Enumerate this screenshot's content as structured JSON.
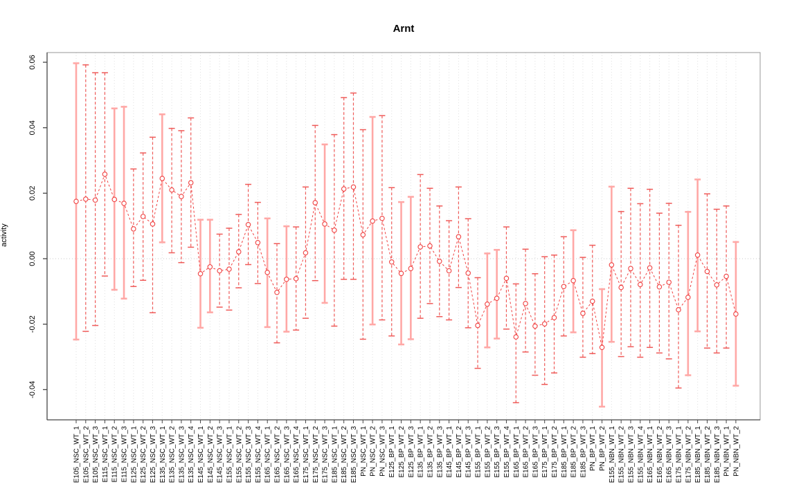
{
  "title": "Arnt",
  "chart_data": {
    "type": "scatter",
    "title": "Arnt",
    "xlabel": "",
    "ylabel": "activity",
    "ylim": [
      -0.0492,
      0.063
    ],
    "yticks": [
      0.06,
      0.04,
      0.02,
      0.0,
      -0.02,
      -0.04
    ],
    "grid": "vertical dotted gridline per category; horizontal dotted line at zero only",
    "legend_position": "none",
    "marker": "open-circle",
    "line_style": "dashed",
    "error_bars": true,
    "points": [
      {
        "label": "E105_NSC_WT_1",
        "value": 0.0175,
        "lo": -0.0247,
        "hi": 0.0597,
        "style": "solid"
      },
      {
        "label": "E105_NSC_WT_2",
        "value": 0.0182,
        "lo": -0.0222,
        "hi": 0.0592,
        "style": "dashed"
      },
      {
        "label": "E105_NSC_WT_3",
        "value": 0.0179,
        "lo": -0.0204,
        "hi": 0.0568,
        "style": "dashed"
      },
      {
        "label": "E115_NSC_WT_1",
        "value": 0.0258,
        "lo": -0.0053,
        "hi": 0.0568,
        "style": "dashed"
      },
      {
        "label": "E115_NSC_WT_2",
        "value": 0.0181,
        "lo": -0.0095,
        "hi": 0.0459,
        "style": "solid"
      },
      {
        "label": "E115_NSC_WT_3",
        "value": 0.0169,
        "lo": -0.0122,
        "hi": 0.0464,
        "style": "solid"
      },
      {
        "label": "E125_NSC_WT_1",
        "value": 0.0091,
        "lo": -0.0085,
        "hi": 0.0274,
        "style": "dashed"
      },
      {
        "label": "E125_NSC_WT_2",
        "value": 0.0129,
        "lo": -0.0066,
        "hi": 0.0323,
        "style": "dashed"
      },
      {
        "label": "E125_NSC_WT_3",
        "value": 0.0106,
        "lo": -0.0165,
        "hi": 0.0371,
        "style": "dashed"
      },
      {
        "label": "E135_NSC_WT_1",
        "value": 0.0245,
        "lo": 0.005,
        "hi": 0.0441,
        "style": "solid"
      },
      {
        "label": "E135_NSC_WT_2",
        "value": 0.021,
        "lo": 0.0018,
        "hi": 0.0398,
        "style": "dashed"
      },
      {
        "label": "E135_NSC_WT_3",
        "value": 0.019,
        "lo": -0.0012,
        "hi": 0.0391,
        "style": "dashed"
      },
      {
        "label": "E135_NSC_WT_4",
        "value": 0.0232,
        "lo": 0.0035,
        "hi": 0.043,
        "style": "dashed"
      },
      {
        "label": "E145_NSC_WT_1",
        "value": -0.0046,
        "lo": -0.0211,
        "hi": 0.0119,
        "style": "solid"
      },
      {
        "label": "E145_NSC_WT_2",
        "value": -0.0025,
        "lo": -0.0164,
        "hi": 0.0119,
        "style": "solid"
      },
      {
        "label": "E145_NSC_WT_3",
        "value": -0.0037,
        "lo": -0.0148,
        "hi": 0.0075,
        "style": "dashed"
      },
      {
        "label": "E155_NSC_WT_1",
        "value": -0.0032,
        "lo": -0.0157,
        "hi": 0.0093,
        "style": "dashed"
      },
      {
        "label": "E155_NSC_WT_2",
        "value": 0.0021,
        "lo": -0.0089,
        "hi": 0.0135,
        "style": "dashed"
      },
      {
        "label": "E155_NSC_WT_3",
        "value": 0.0104,
        "lo": -0.0018,
        "hi": 0.0227,
        "style": "dashed"
      },
      {
        "label": "E155_NSC_WT_4",
        "value": 0.0049,
        "lo": -0.0076,
        "hi": 0.0172,
        "style": "dashed"
      },
      {
        "label": "E165_NSC_WT_1",
        "value": -0.0042,
        "lo": -0.0209,
        "hi": 0.0123,
        "style": "solid"
      },
      {
        "label": "E165_NSC_WT_2",
        "value": -0.0103,
        "lo": -0.0257,
        "hi": 0.0046,
        "style": "dashed"
      },
      {
        "label": "E165_NSC_WT_3",
        "value": -0.0063,
        "lo": -0.0223,
        "hi": 0.0099,
        "style": "solid"
      },
      {
        "label": "E165_NSC_WT_4",
        "value": -0.0061,
        "lo": -0.0218,
        "hi": 0.0097,
        "style": "dashed"
      },
      {
        "label": "E175_NSC_WT_1",
        "value": 0.0018,
        "lo": -0.0182,
        "hi": 0.0219,
        "style": "dashed"
      },
      {
        "label": "E175_NSC_WT_2",
        "value": 0.0171,
        "lo": -0.0067,
        "hi": 0.0407,
        "style": "dashed"
      },
      {
        "label": "E175_NSC_WT_3",
        "value": 0.0106,
        "lo": -0.0135,
        "hi": 0.0349,
        "style": "solid"
      },
      {
        "label": "E185_NSC_WT_1",
        "value": 0.0087,
        "lo": -0.0206,
        "hi": 0.0379,
        "style": "dashed"
      },
      {
        "label": "E185_NSC_WT_2",
        "value": 0.0213,
        "lo": -0.0063,
        "hi": 0.0492,
        "style": "dashed"
      },
      {
        "label": "E185_NSC_WT_3",
        "value": 0.0219,
        "lo": -0.0063,
        "hi": 0.0506,
        "style": "dashed"
      },
      {
        "label": "PN_NSC_WT_1",
        "value": 0.0073,
        "lo": -0.0246,
        "hi": 0.0394,
        "style": "dashed"
      },
      {
        "label": "PN_NSC_WT_2",
        "value": 0.0115,
        "lo": -0.0201,
        "hi": 0.0433,
        "style": "solid"
      },
      {
        "label": "PN_NSC_WT_3",
        "value": 0.0123,
        "lo": -0.0187,
        "hi": 0.0437,
        "style": "dashed"
      },
      {
        "label": "E125_BP_WT_1",
        "value": -0.001,
        "lo": -0.0236,
        "hi": 0.0217,
        "style": "dashed"
      },
      {
        "label": "E125_BP_WT_2",
        "value": -0.0045,
        "lo": -0.0262,
        "hi": 0.0173,
        "style": "solid"
      },
      {
        "label": "E125_BP_WT_3",
        "value": -0.003,
        "lo": -0.0246,
        "hi": 0.0189,
        "style": "solid"
      },
      {
        "label": "E135_BP_WT_1",
        "value": 0.0036,
        "lo": -0.0182,
        "hi": 0.0257,
        "style": "dashed"
      },
      {
        "label": "E135_BP_WT_2",
        "value": 0.0039,
        "lo": -0.0137,
        "hi": 0.0215,
        "style": "dashed"
      },
      {
        "label": "E135_BP_WT_3",
        "value": -0.0008,
        "lo": -0.0177,
        "hi": 0.0161,
        "style": "dashed"
      },
      {
        "label": "E145_BP_WT_1",
        "value": -0.0037,
        "lo": -0.0187,
        "hi": 0.0116,
        "style": "dashed"
      },
      {
        "label": "E145_BP_WT_2",
        "value": 0.0067,
        "lo": -0.0088,
        "hi": 0.0219,
        "style": "dashed"
      },
      {
        "label": "E145_BP_WT_3",
        "value": -0.0044,
        "lo": -0.0211,
        "hi": 0.0122,
        "style": "dashed"
      },
      {
        "label": "E155_BP_WT_1",
        "value": -0.0204,
        "lo": -0.0335,
        "hi": -0.0058,
        "style": "dashed"
      },
      {
        "label": "E155_BP_WT_2",
        "value": -0.0139,
        "lo": -0.0271,
        "hi": 0.0016,
        "style": "solid"
      },
      {
        "label": "E155_BP_WT_3",
        "value": -0.0121,
        "lo": -0.0244,
        "hi": 0.0027,
        "style": "solid"
      },
      {
        "label": "E155_BP_WT_4",
        "value": -0.006,
        "lo": -0.0215,
        "hi": 0.0097,
        "style": "dashed"
      },
      {
        "label": "E165_BP_WT_1",
        "value": -0.0239,
        "lo": -0.044,
        "hi": -0.0077,
        "style": "dashed"
      },
      {
        "label": "E165_BP_WT_2",
        "value": -0.0137,
        "lo": -0.0285,
        "hi": 0.0029,
        "style": "dashed"
      },
      {
        "label": "E165_BP_WT_3",
        "value": -0.0206,
        "lo": -0.0356,
        "hi": -0.0046,
        "style": "dashed"
      },
      {
        "label": "E175_BP_WT_1",
        "value": -0.0199,
        "lo": -0.0384,
        "hi": 0.0006,
        "style": "dashed"
      },
      {
        "label": "E175_BP_WT_2",
        "value": -0.018,
        "lo": -0.0349,
        "hi": 0.0011,
        "style": "dashed"
      },
      {
        "label": "E185_BP_WT_1",
        "value": -0.0085,
        "lo": -0.0236,
        "hi": 0.0067,
        "style": "dashed"
      },
      {
        "label": "E185_BP_WT_2",
        "value": -0.0067,
        "lo": -0.0225,
        "hi": 0.0087,
        "style": "solid"
      },
      {
        "label": "E185_BP_WT_3",
        "value": -0.0167,
        "lo": -0.0301,
        "hi": 0.0004,
        "style": "dashed"
      },
      {
        "label": "PN_BP_WT_1",
        "value": -0.013,
        "lo": -0.029,
        "hi": 0.0041,
        "style": "dashed"
      },
      {
        "label": "PN_BP_WT_2",
        "value": -0.0271,
        "lo": -0.0452,
        "hi": -0.0093,
        "style": "solid"
      },
      {
        "label": "E155_NBN_WT_1",
        "value": -0.0019,
        "lo": -0.0254,
        "hi": 0.022,
        "style": "solid"
      },
      {
        "label": "E155_NBN_WT_2",
        "value": -0.0088,
        "lo": -0.0299,
        "hi": 0.0144,
        "style": "dashed"
      },
      {
        "label": "E155_NBN_WT_3",
        "value": -0.003,
        "lo": -0.0269,
        "hi": 0.0215,
        "style": "dashed"
      },
      {
        "label": "E155_NBN_WT_4",
        "value": -0.0079,
        "lo": -0.0301,
        "hi": 0.0168,
        "style": "dashed"
      },
      {
        "label": "E165_NBN_WT_1",
        "value": -0.0028,
        "lo": -0.0271,
        "hi": 0.0212,
        "style": "dashed"
      },
      {
        "label": "E165_NBN_WT_2",
        "value": -0.0086,
        "lo": -0.0288,
        "hi": 0.0139,
        "style": "dashed"
      },
      {
        "label": "E165_NBN_WT_3",
        "value": -0.0072,
        "lo": -0.0306,
        "hi": 0.0169,
        "style": "dashed"
      },
      {
        "label": "E175_NBN_WT_1",
        "value": -0.0156,
        "lo": -0.0395,
        "hi": 0.0102,
        "style": "dashed"
      },
      {
        "label": "E175_NBN_WT_2",
        "value": -0.0118,
        "lo": -0.0356,
        "hi": 0.0143,
        "style": "solid"
      },
      {
        "label": "E185_NBN_WT_1",
        "value": 0.0011,
        "lo": -0.0222,
        "hi": 0.0242,
        "style": "solid"
      },
      {
        "label": "E185_NBN_WT_2",
        "value": -0.0039,
        "lo": -0.0273,
        "hi": 0.0198,
        "style": "dashed"
      },
      {
        "label": "E185_NBN_WT_3",
        "value": -0.008,
        "lo": -0.0288,
        "hi": 0.0151,
        "style": "dashed"
      },
      {
        "label": "PN_NBN_WT_1",
        "value": -0.0054,
        "lo": -0.0273,
        "hi": 0.0161,
        "style": "dashed"
      },
      {
        "label": "PN_NBN_WT_2",
        "value": -0.0169,
        "lo": -0.0388,
        "hi": 0.0051,
        "style": "solid"
      }
    ]
  },
  "colors": {
    "point_line": "#f04040",
    "bar_solid": "#ffa8a6",
    "bar_dashed": "#ef5a58",
    "gridline": "#dfdfdf",
    "zero_line": "#c9c9c9",
    "box": "#979797",
    "axis": "#454545",
    "text": "#000000",
    "background": "#ffffff"
  }
}
